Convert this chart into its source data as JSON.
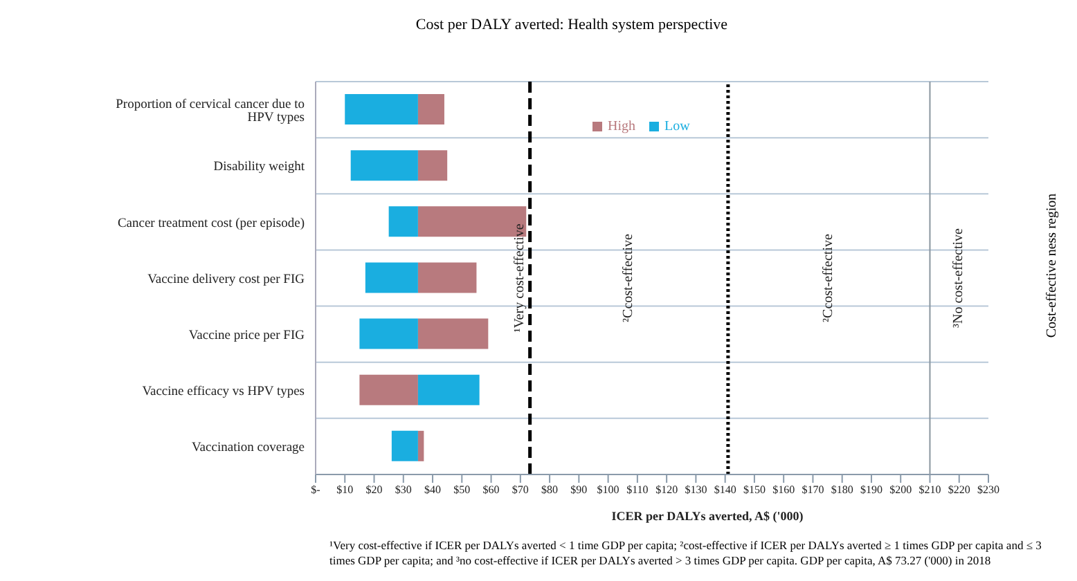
{
  "chart_data": {
    "type": "bar",
    "orientation": "horizontal",
    "title": "Cost per DALY averted: Health system perspective",
    "xlabel": "ICER per DALYs averted, A$ ('000)",
    "y2label": "Cost-effective ness region",
    "categories": [
      "Proportion of cervical cancer due to HPV types",
      "Disability weight",
      "Cancer treatment cost (per episode)",
      "Vaccine delivery cost per FIG",
      "Vaccine price per FIG",
      "Vaccine efficacy vs HPV types",
      "Vaccination coverage"
    ],
    "series": [
      {
        "name": "High",
        "color": "#b87a7e",
        "base": [
          35,
          35,
          35,
          35,
          35,
          15,
          35
        ],
        "values": [
          9,
          10,
          37,
          20,
          24,
          20,
          2
        ]
      },
      {
        "name": "Low",
        "color": "#1aaee0",
        "base": [
          10,
          12,
          25,
          17,
          15,
          35,
          26
        ],
        "values": [
          25,
          23,
          10,
          18,
          20,
          21,
          9
        ]
      }
    ],
    "xlim": [
      0,
      230
    ],
    "xticks": [
      {
        "value": 0,
        "label": "$-"
      },
      {
        "value": 10,
        "label": "$10"
      },
      {
        "value": 20,
        "label": "$20"
      },
      {
        "value": 30,
        "label": "$30"
      },
      {
        "value": 40,
        "label": "$40"
      },
      {
        "value": 50,
        "label": "$50"
      },
      {
        "value": 60,
        "label": "$60"
      },
      {
        "value": 70,
        "label": "$70"
      },
      {
        "value": 80,
        "label": "$80"
      },
      {
        "value": 90,
        "label": "$90"
      },
      {
        "value": 100,
        "label": "$100"
      },
      {
        "value": 110,
        "label": "$110"
      },
      {
        "value": 120,
        "label": "$120"
      },
      {
        "value": 130,
        "label": "$130"
      },
      {
        "value": 140,
        "label": "$140"
      },
      {
        "value": 150,
        "label": "$150"
      },
      {
        "value": 160,
        "label": "$160"
      },
      {
        "value": 170,
        "label": "$170"
      },
      {
        "value": 180,
        "label": "$180"
      },
      {
        "value": 190,
        "label": "$190"
      },
      {
        "value": 200,
        "label": "$200"
      },
      {
        "value": 210,
        "label": "$210"
      },
      {
        "value": 220,
        "label": "$220"
      },
      {
        "value": 230,
        "label": "$230"
      }
    ],
    "ref_lines": [
      {
        "axis": "x",
        "value": 73.27,
        "label": "¹Very cost-effective",
        "color": "#000000",
        "line_style": "dashed"
      },
      {
        "axis": "x",
        "value": 141,
        "color": "#000000",
        "line_style": "dotted"
      },
      {
        "axis": "x",
        "value": 210,
        "color": "#8a96a0",
        "line_style": "solid"
      }
    ],
    "annotations": [
      "²Ccost-effective",
      "²Ccost-effective",
      "³No cost-effective",
      "¹Very cost-effective if ICER per DALYs averted < 1 time GDP per capita; ²cost-effective if ICER per DALYs averted ≥ 1 times GDP per capita and ≤ 3 times GDP per capita; and ³no cost-effective if ICER per DALYs averted > 3 times GDP per capita. GDP per capita, A$ 73.27 ('000) in 2018"
    ],
    "grid": "y",
    "legend": "top"
  }
}
